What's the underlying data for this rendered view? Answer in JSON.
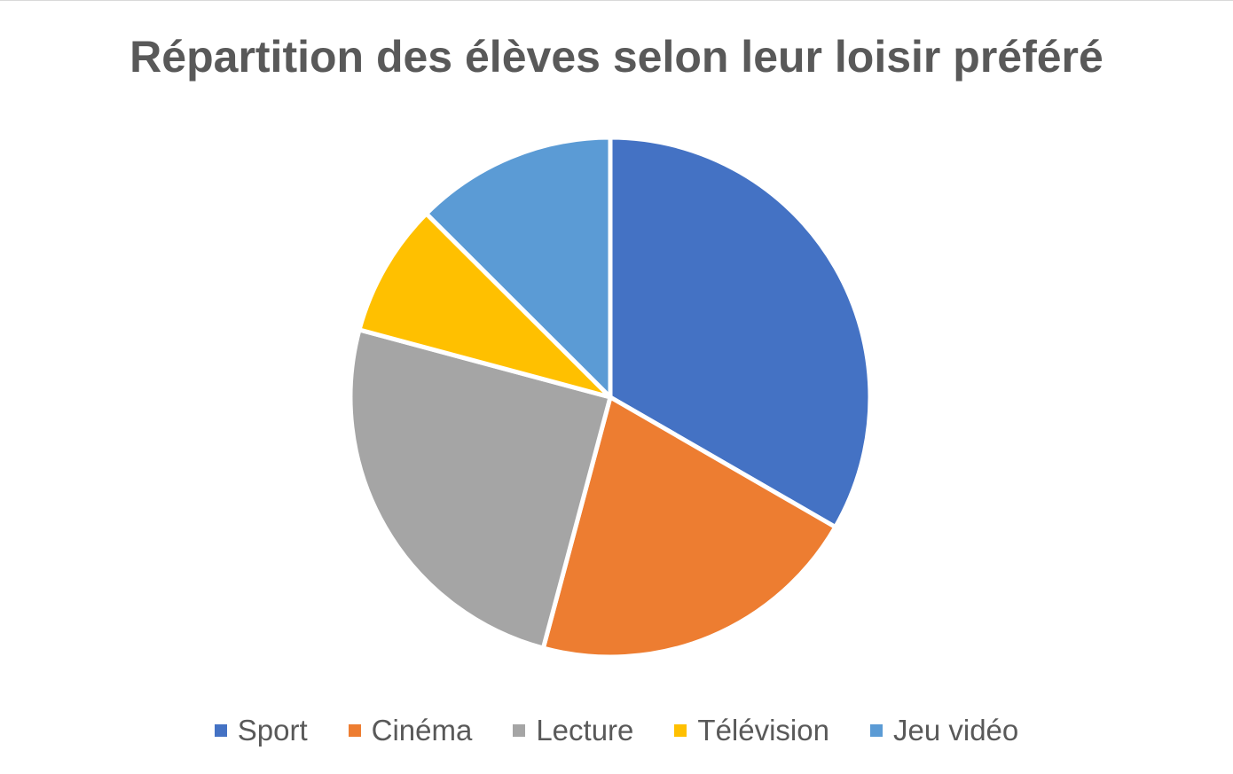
{
  "chart_data": {
    "type": "pie",
    "title": "Répartition des élèves selon leur loisir préféré",
    "categories": [
      "Sport",
      "Cinéma",
      "Lecture",
      "Télévision",
      "Jeu vidéo"
    ],
    "values": [
      33.3,
      20.8,
      25.0,
      8.3,
      12.5
    ],
    "colors": [
      "#4472C4",
      "#ED7D31",
      "#A5A5A5",
      "#FFC000",
      "#5B9BD5"
    ],
    "start_angle": "12 o'clock",
    "direction": "clockwise",
    "legend_position": "bottom"
  }
}
